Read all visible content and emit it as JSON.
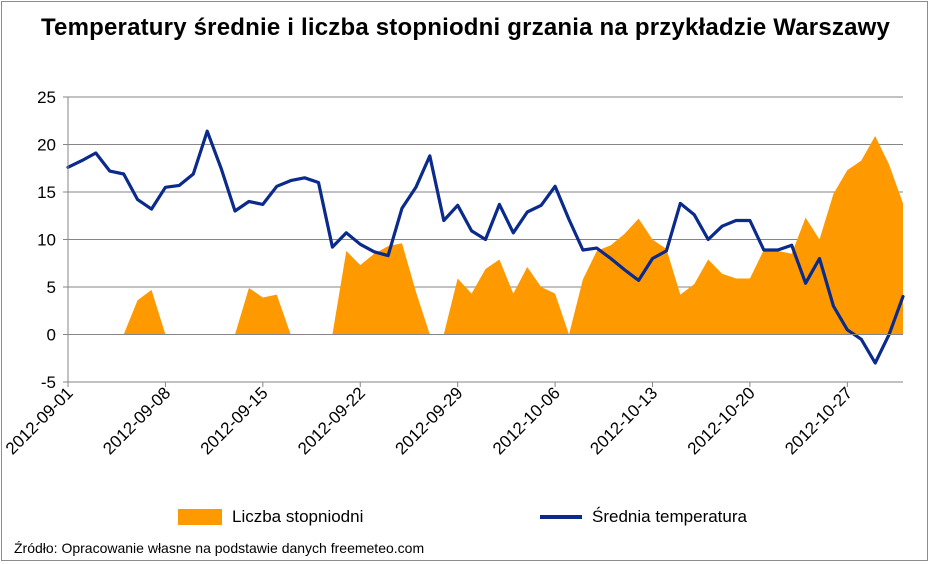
{
  "chart_data": {
    "type": "line",
    "title": "Temperatury średnie i liczba stopniodni grzania na przykładzie Warszawy",
    "xlabel": "",
    "ylabel": "",
    "ylim": [
      -5,
      25
    ],
    "yticks": [
      -5,
      0,
      5,
      10,
      15,
      20,
      25
    ],
    "x_tick_labels": [
      "2012-09-01",
      "2012-09-08",
      "2012-09-15",
      "2012-09-22",
      "2012-09-29",
      "2012-10-06",
      "2012-10-13",
      "2012-10-20",
      "2012-10-27"
    ],
    "x": [
      "2012-09-01",
      "2012-09-02",
      "2012-09-03",
      "2012-09-04",
      "2012-09-05",
      "2012-09-06",
      "2012-09-07",
      "2012-09-08",
      "2012-09-09",
      "2012-09-10",
      "2012-09-11",
      "2012-09-12",
      "2012-09-13",
      "2012-09-14",
      "2012-09-15",
      "2012-09-16",
      "2012-09-17",
      "2012-09-18",
      "2012-09-19",
      "2012-09-20",
      "2012-09-21",
      "2012-09-22",
      "2012-09-23",
      "2012-09-24",
      "2012-09-25",
      "2012-09-26",
      "2012-09-27",
      "2012-09-28",
      "2012-09-29",
      "2012-09-30",
      "2012-10-01",
      "2012-10-02",
      "2012-10-03",
      "2012-10-04",
      "2012-10-05",
      "2012-10-06",
      "2012-10-07",
      "2012-10-08",
      "2012-10-09",
      "2012-10-10",
      "2012-10-11",
      "2012-10-12",
      "2012-10-13",
      "2012-10-14",
      "2012-10-15",
      "2012-10-16",
      "2012-10-17",
      "2012-10-18",
      "2012-10-19",
      "2012-10-20",
      "2012-10-21",
      "2012-10-22",
      "2012-10-23",
      "2012-10-24",
      "2012-10-25",
      "2012-10-26",
      "2012-10-27",
      "2012-10-28",
      "2012-10-29",
      "2012-10-30",
      "2012-10-31"
    ],
    "series": [
      {
        "name": "Liczba stopniodni",
        "type": "area",
        "color": "#ff9900",
        "values": [
          0,
          0,
          0,
          0,
          0,
          3.6,
          4.7,
          0,
          0,
          0,
          0,
          0,
          0,
          4.9,
          3.9,
          4.2,
          0,
          0,
          0,
          0,
          8.8,
          7.3,
          8.5,
          9.3,
          9.6,
          4.5,
          0,
          0,
          5.9,
          4.3,
          6.9,
          7.9,
          4.3,
          7.1,
          5.0,
          4.3,
          0,
          5.8,
          8.8,
          9.4,
          10.6,
          12.2,
          10.0,
          9.0,
          4.2,
          5.3,
          7.9,
          6.4,
          5.9,
          5.9,
          8.9,
          8.8,
          8.5,
          12.3,
          10.0,
          14.8,
          17.3,
          18.3,
          20.9,
          17.9,
          13.8
        ]
      },
      {
        "name": "Średnia temperatura",
        "type": "line",
        "color": "#0a2a8c",
        "values": [
          17.6,
          18.3,
          19.1,
          17.2,
          16.9,
          14.2,
          13.2,
          15.5,
          15.7,
          16.9,
          21.4,
          17.5,
          13.0,
          14.0,
          13.7,
          15.6,
          16.2,
          16.5,
          16.0,
          9.2,
          10.7,
          9.5,
          8.7,
          8.3,
          13.3,
          15.5,
          18.8,
          12.0,
          13.6,
          10.9,
          10.0,
          13.7,
          10.7,
          12.9,
          13.6,
          15.6,
          12.1,
          8.9,
          9.1,
          8.0,
          6.8,
          5.7,
          8.0,
          8.8,
          13.8,
          12.6,
          10.0,
          11.4,
          12.0,
          12.0,
          8.9,
          8.9,
          9.4,
          5.4,
          8.0,
          3.0,
          0.5,
          -0.5,
          -3.0,
          0.0,
          4.0
        ]
      }
    ],
    "grid": true,
    "legend_position": "bottom"
  },
  "legend": {
    "area_label": "Liczba stopniodni",
    "line_label": "Średnia temperatura"
  },
  "source": "Źródło: Opracowanie własne na podstawie danych freemeteo.com"
}
